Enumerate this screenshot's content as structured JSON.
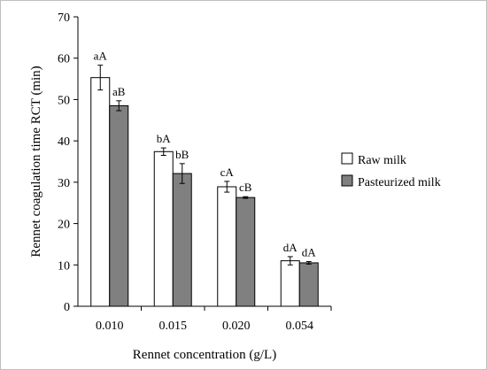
{
  "chart_data": {
    "type": "bar",
    "title": "",
    "xlabel": "Rennet concentration (g/L)",
    "ylabel": "Rennet coagulation time RCT (min)",
    "ylim": [
      0,
      70
    ],
    "yticks": [
      0,
      10,
      20,
      30,
      40,
      50,
      60,
      70
    ],
    "grid": false,
    "legend_placement": "right",
    "categories": [
      "0.010",
      "0.015",
      "0.020",
      "0.054"
    ],
    "series": [
      {
        "name": "Raw milk",
        "color": "#ffffff",
        "values": [
          55.3,
          37.4,
          28.9,
          11.0
        ],
        "errors": [
          3.0,
          0.9,
          1.3,
          1.0
        ],
        "labels": [
          "aA",
          "bA",
          "cA",
          "dA"
        ]
      },
      {
        "name": "Pasteurized milk",
        "color": "#808080",
        "values": [
          48.5,
          32.1,
          26.3,
          10.5
        ],
        "errors": [
          1.2,
          2.4,
          0.2,
          0.3
        ],
        "labels": [
          "aB",
          "bB",
          "cB",
          "dA"
        ]
      }
    ]
  }
}
